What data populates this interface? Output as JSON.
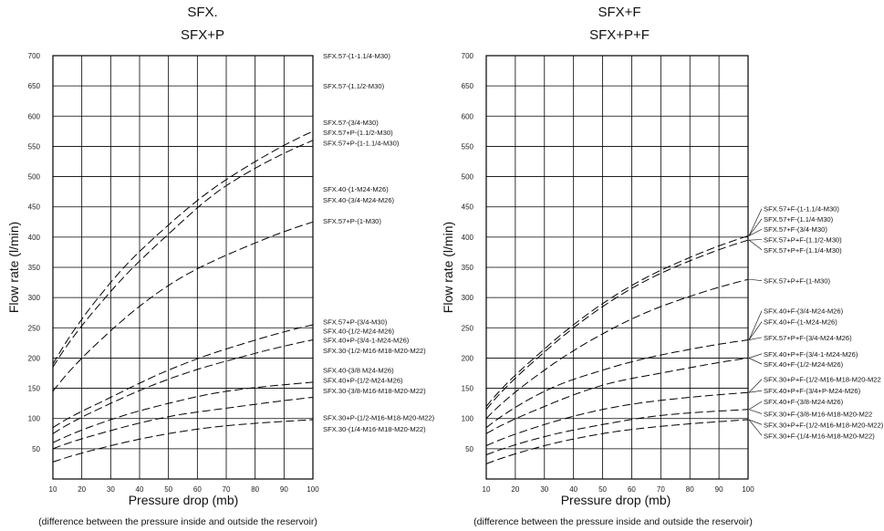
{
  "chart_data": [
    {
      "type": "line",
      "title_lines": [
        "SFX.",
        "SFX+P"
      ],
      "xlabel": "Pressure drop (mb)",
      "ylabel": "Flow rate (l/min)",
      "note": "(difference between the pressure inside and outside the reservoir)",
      "xlim": [
        10,
        100
      ],
      "ylim": [
        0,
        700
      ],
      "xticks": [
        "10",
        "20",
        "30",
        "40",
        "50",
        "60",
        "70",
        "80",
        "90",
        "100"
      ],
      "yticks": [
        "50",
        "100",
        "150",
        "200",
        "250",
        "300",
        "350",
        "400",
        "450",
        "500",
        "550",
        "600",
        "650",
        "700"
      ],
      "grid": true,
      "line_style": "dashed",
      "series": [
        {
          "x": [
            10,
            30,
            50,
            70,
            100
          ],
          "y": [
            190,
            325,
            420,
            495,
            575
          ]
        },
        {
          "x": [
            10,
            30,
            50,
            70,
            100
          ],
          "y": [
            185,
            310,
            405,
            485,
            560
          ]
        },
        {
          "x": [
            10,
            30,
            50,
            70,
            100
          ],
          "y": [
            145,
            245,
            320,
            370,
            425
          ]
        },
        {
          "x": [
            10,
            30,
            50,
            70,
            100
          ],
          "y": [
            85,
            135,
            180,
            215,
            255
          ]
        },
        {
          "x": [
            10,
            30,
            50,
            70,
            100
          ],
          "y": [
            75,
            125,
            165,
            195,
            230
          ]
        },
        {
          "x": [
            10,
            30,
            50,
            70,
            100
          ],
          "y": [
            60,
            98,
            125,
            145,
            160
          ]
        },
        {
          "x": [
            10,
            30,
            50,
            70,
            100
          ],
          "y": [
            50,
            80,
            103,
            117,
            135
          ]
        },
        {
          "x": [
            10,
            30,
            50,
            70,
            100
          ],
          "y": [
            28,
            55,
            75,
            88,
            98
          ]
        }
      ],
      "legend_labels": [
        {
          "text": "SFX.57-(1-1.1/4-M30)",
          "y": 700
        },
        {
          "text": "SFX.57-(1.1/2-M30)",
          "y": 650
        },
        {
          "text": "SFX.57-(3/4-M30)",
          "y": 590
        },
        {
          "text": "SFX.57+P-(1.1/2-M30)",
          "y": 573
        },
        {
          "text": "SFX.57+P-(1-1.1/4-M30)",
          "y": 556
        },
        {
          "text": "SFX.40-(1-M24-M26)",
          "y": 480
        },
        {
          "text": "SFX.40-(3/4-M24-M26)",
          "y": 462
        },
        {
          "text": "SFX.57+P-(1-M30)",
          "y": 427
        },
        {
          "text": "SFX.57+P-(3/4-M30)",
          "y": 260
        },
        {
          "text": "SFX.40-(1/2-M24-M26)",
          "y": 245
        },
        {
          "text": "SFX.40+P-(3/4-1-M24-M26)",
          "y": 230
        },
        {
          "text": "SFX.30-(1/2-M16-M18-M20-M22)",
          "y": 213
        },
        {
          "text": "SFX.40-(3/8 M24-M26)",
          "y": 180
        },
        {
          "text": "SFX.40+P-(1/2-M24-M26)",
          "y": 164
        },
        {
          "text": "SFX.30-(3/8-M16-M18-M20-M22)",
          "y": 146
        },
        {
          "text": "SFX.30+P-(1/2-M16-M18-M20-M22)",
          "y": 102
        },
        {
          "text": "SFX.30-(1/4-M16-M18-M20-M22)",
          "y": 83
        }
      ]
    },
    {
      "type": "line",
      "title_lines": [
        "SFX+F",
        "SFX+P+F"
      ],
      "xlabel": "Pressure drop (mb)",
      "ylabel": "Flow rate (l/min)",
      "note": "(difference between the pressure inside and outside the reservoir)",
      "xlim": [
        10,
        100
      ],
      "ylim": [
        0,
        700
      ],
      "xticks": [
        "10",
        "20",
        "30",
        "40",
        "50",
        "60",
        "70",
        "80",
        "90",
        "100"
      ],
      "yticks": [
        "50",
        "100",
        "150",
        "200",
        "250",
        "300",
        "350",
        "400",
        "450",
        "500",
        "550",
        "600",
        "650",
        "700"
      ],
      "grid": true,
      "line_style": "dashed",
      "series": [
        {
          "x": [
            10,
            30,
            50,
            70,
            100
          ],
          "y": [
            120,
            215,
            290,
            345,
            402
          ]
        },
        {
          "x": [
            10,
            30,
            50,
            70,
            100
          ],
          "y": [
            115,
            210,
            285,
            340,
            395
          ]
        },
        {
          "x": [
            10,
            30,
            50,
            70,
            100
          ],
          "y": [
            100,
            180,
            240,
            285,
            330
          ]
        },
        {
          "x": [
            10,
            30,
            50,
            70,
            100
          ],
          "y": [
            85,
            145,
            180,
            205,
            230
          ]
        },
        {
          "x": [
            10,
            30,
            50,
            70,
            100
          ],
          "y": [
            75,
            120,
            155,
            175,
            200
          ]
        },
        {
          "x": [
            10,
            30,
            50,
            70,
            100
          ],
          "y": [
            55,
            90,
            115,
            130,
            143
          ]
        },
        {
          "x": [
            10,
            30,
            50,
            70,
            100
          ],
          "y": [
            40,
            70,
            90,
            105,
            115
          ]
        },
        {
          "x": [
            10,
            30,
            50,
            70,
            100
          ],
          "y": [
            25,
            55,
            75,
            87,
            98
          ]
        }
      ],
      "legend_labels": [
        {
          "text": "SFX.57+F-(1-1.1/4-M30)",
          "y": 447
        },
        {
          "text": "SFX.57+F-(1.1/4-M30)",
          "y": 430
        },
        {
          "text": "SFX.57+F-(3/4-M30)",
          "y": 413
        },
        {
          "text": "SFX.57+P+F-(1.1/2-M30)",
          "y": 396
        },
        {
          "text": "SFX.57+P+F-(1.1/4-M30)",
          "y": 379
        },
        {
          "text": "SFX.57+P+F-(1-M30)",
          "y": 328
        },
        {
          "text": "SFX.40+F-(3/4-M24-M26)",
          "y": 278
        },
        {
          "text": "SFX.40+F-(1-M24-M26)",
          "y": 260
        },
        {
          "text": "SFX.57+P+F-(3/4-M24-M26)",
          "y": 234
        },
        {
          "text": "SFX.40+P+F-(3/4-1-M24-M26)",
          "y": 207
        },
        {
          "text": "SFX.40+F-(1/2-M24-M26)",
          "y": 190
        },
        {
          "text": "SFX.30+P+F-(1/2-M16-M18-M20-M22",
          "y": 165
        },
        {
          "text": "SFX.40+P+F-(3/4+P-M24-M26)",
          "y": 146
        },
        {
          "text": "SFX.40+F-(3/8-M24-M26)",
          "y": 128
        },
        {
          "text": "SFX.30+F-(3/8-M16-M18-M20-M22",
          "y": 108
        },
        {
          "text": "SFX.30+P+F-(1/2-M16-M18-M20-M22)",
          "y": 90
        },
        {
          "text": "SFX.30+F-(1/4-M16-M18-M20-M22)",
          "y": 72
        }
      ]
    }
  ]
}
